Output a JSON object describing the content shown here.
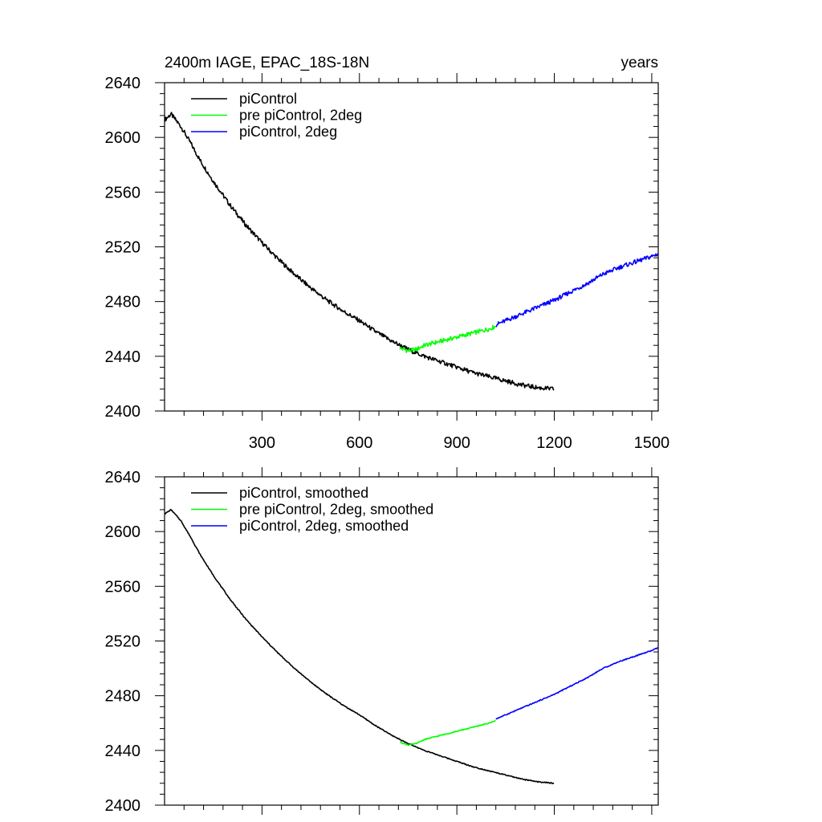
{
  "chart_data": [
    {
      "type": "line",
      "title": "2400m IAGE, EPAC_18S-18N",
      "units": "years",
      "xlabel": "",
      "ylabel": "",
      "xlim": [
        0,
        1520
      ],
      "ylim": [
        2400,
        2640
      ],
      "xticks": [
        300,
        600,
        900,
        1200,
        1500
      ],
      "xtick_labels": [
        "300",
        "600",
        "900",
        "1200",
        "1500"
      ],
      "yticks": [
        2400,
        2440,
        2480,
        2520,
        2560,
        2600,
        2640
      ],
      "ytick_labels": [
        "2400",
        "2440",
        "2480",
        "2520",
        "2560",
        "2600",
        "2640"
      ],
      "legend_position": "top-left",
      "series": [
        {
          "name": "piControl",
          "color": "#000000",
          "x": [
            1,
            20,
            50,
            80,
            110,
            150,
            200,
            250,
            300,
            350,
            400,
            450,
            500,
            550,
            600,
            650,
            700,
            750,
            800,
            850,
            900,
            950,
            1000,
            1050,
            1100,
            1150,
            1200
          ],
          "y": [
            2613,
            2617,
            2608,
            2596,
            2583,
            2568,
            2551,
            2536,
            2523,
            2511,
            2500,
            2490,
            2481,
            2473,
            2466,
            2458,
            2451,
            2445,
            2440,
            2436,
            2432,
            2428,
            2425,
            2422,
            2419,
            2417,
            2416
          ]
        },
        {
          "name": "pre piControl, 2deg",
          "color": "#00ff00",
          "x": [
            725,
            750,
            775,
            800,
            850,
            900,
            950,
            1000,
            1020
          ],
          "y": [
            2446,
            2444,
            2445,
            2448,
            2451,
            2454,
            2457,
            2460,
            2462
          ]
        },
        {
          "name": "piControl, 2deg",
          "color": "#0000ff",
          "x": [
            1020,
            1050,
            1100,
            1150,
            1200,
            1250,
            1300,
            1350,
            1400,
            1450,
            1500,
            1520
          ],
          "y": [
            2463,
            2466,
            2471,
            2476,
            2481,
            2487,
            2493,
            2500,
            2505,
            2509,
            2513,
            2515
          ]
        }
      ]
    },
    {
      "type": "line",
      "title": "",
      "xlabel": "",
      "ylabel": "",
      "xlim": [
        0,
        1520
      ],
      "ylim": [
        2400,
        2640
      ],
      "xticks": [
        300,
        600,
        900,
        1200,
        1500
      ],
      "xtick_labels": [],
      "yticks": [
        2400,
        2440,
        2480,
        2520,
        2560,
        2600,
        2640
      ],
      "ytick_labels": [
        "2400",
        "2440",
        "2480",
        "2520",
        "2560",
        "2600",
        "2640"
      ],
      "legend_position": "top-left",
      "series": [
        {
          "name": "piControl, smoothed",
          "color": "#000000",
          "x": [
            1,
            20,
            50,
            80,
            110,
            150,
            200,
            250,
            300,
            350,
            400,
            450,
            500,
            550,
            600,
            650,
            700,
            750,
            800,
            850,
            900,
            950,
            1000,
            1050,
            1100,
            1150,
            1200
          ],
          "y": [
            2613,
            2616,
            2608,
            2596,
            2583,
            2568,
            2551,
            2536,
            2523,
            2511,
            2500,
            2490,
            2481,
            2473,
            2466,
            2458,
            2451,
            2445,
            2440,
            2436,
            2432,
            2428,
            2425,
            2422,
            2419,
            2417,
            2416
          ]
        },
        {
          "name": "pre piControl, 2deg, smoothed",
          "color": "#00ff00",
          "x": [
            725,
            750,
            775,
            800,
            850,
            900,
            950,
            1000,
            1020
          ],
          "y": [
            2446,
            2444,
            2445,
            2448,
            2451,
            2454,
            2457,
            2460,
            2462
          ]
        },
        {
          "name": "piControl, 2deg, smoothed",
          "color": "#0000ff",
          "x": [
            1020,
            1050,
            1100,
            1150,
            1200,
            1250,
            1300,
            1350,
            1400,
            1450,
            1500,
            1520
          ],
          "y": [
            2463,
            2466,
            2471,
            2476,
            2481,
            2487,
            2493,
            2500,
            2505,
            2509,
            2513,
            2515
          ]
        }
      ]
    }
  ]
}
